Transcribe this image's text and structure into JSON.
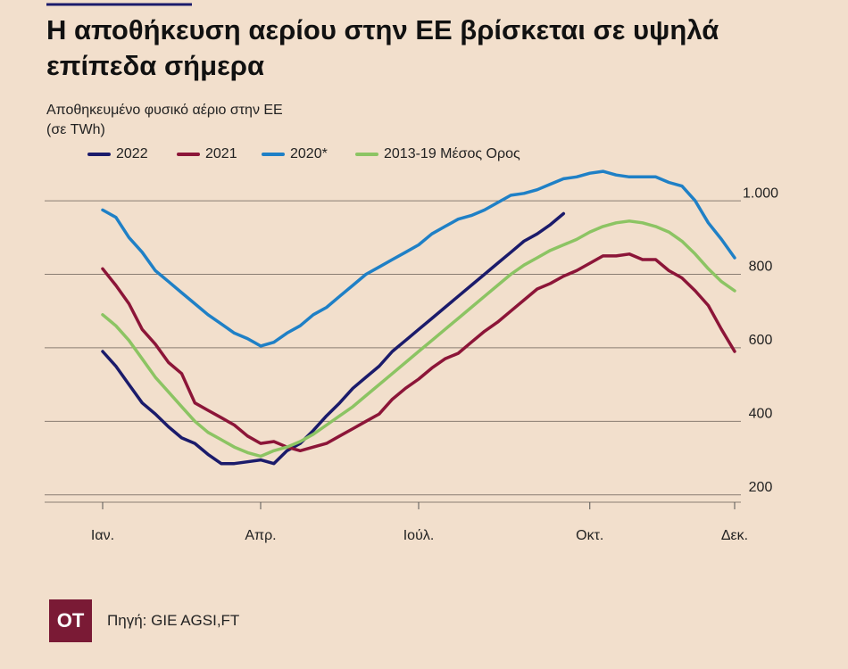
{
  "header": {
    "logo": "OT",
    "source": "Πηγή: GIE AGSI,FT"
  },
  "chart_data": {
    "type": "line",
    "title": "Η αποθήκευση αερίου στην ΕΕ βρίσκεται σε υψηλά επίπεδα σήμερα",
    "subtitle": "Αποθηκευμένο φυσικό αέριο στην ΕΕ",
    "ylabel": "(σε TWh)",
    "categories": [
      "Ιαν.",
      null,
      null,
      null,
      null,
      null,
      null,
      null,
      null,
      null,
      null,
      null,
      "Απρ.",
      null,
      null,
      null,
      null,
      null,
      null,
      null,
      null,
      null,
      null,
      null,
      "Ιούλ.",
      null,
      null,
      null,
      null,
      null,
      null,
      null,
      null,
      null,
      null,
      null,
      null,
      "Οκτ.",
      null,
      null,
      null,
      null,
      null,
      null,
      null,
      null,
      null,
      null,
      "Δεκ."
    ],
    "ylim": [
      180,
      1090
    ],
    "yticks": [
      200,
      400,
      600,
      800,
      {
        "value": 1000,
        "label": "1.000"
      }
    ],
    "grid": true,
    "series": [
      {
        "name": "2022",
        "color": "#1b1b6b",
        "values": [
          590,
          550,
          500,
          450,
          420,
          385,
          355,
          340,
          310,
          285,
          285,
          290,
          295,
          285,
          320,
          340,
          375,
          415,
          450,
          490,
          520,
          550,
          590,
          620,
          650,
          680,
          710,
          740,
          770,
          800,
          830,
          860,
          890,
          910,
          935,
          965,
          null,
          null,
          null,
          null,
          null,
          null,
          null,
          null,
          null,
          null,
          null,
          null,
          null
        ]
      },
      {
        "name": "2021",
        "color": "#8c1538",
        "values": [
          815,
          770,
          720,
          650,
          610,
          560,
          530,
          450,
          430,
          410,
          390,
          360,
          340,
          345,
          330,
          320,
          330,
          340,
          360,
          380,
          400,
          420,
          460,
          490,
          515,
          545,
          570,
          585,
          615,
          645,
          670,
          700,
          730,
          760,
          775,
          795,
          810,
          830,
          850,
          850,
          855,
          840,
          840,
          810,
          790,
          755,
          715,
          650,
          590
        ]
      },
      {
        "name": "2020*",
        "color": "#1f80c6",
        "values": [
          975,
          955,
          900,
          860,
          810,
          780,
          750,
          720,
          690,
          665,
          640,
          625,
          605,
          615,
          640,
          660,
          690,
          710,
          740,
          770,
          800,
          820,
          840,
          860,
          880,
          910,
          930,
          950,
          960,
          975,
          995,
          1015,
          1020,
          1030,
          1045,
          1060,
          1065,
          1075,
          1080,
          1070,
          1065,
          1065,
          1065,
          1050,
          1040,
          1000,
          940,
          895,
          845
        ]
      },
      {
        "name": "2013-19 Μέσος Ορος",
        "color": "#8cc463",
        "values": [
          690,
          660,
          620,
          570,
          520,
          480,
          440,
          400,
          370,
          350,
          330,
          315,
          305,
          320,
          330,
          345,
          365,
          390,
          415,
          440,
          470,
          500,
          530,
          560,
          590,
          620,
          650,
          680,
          710,
          740,
          770,
          800,
          825,
          845,
          865,
          880,
          895,
          915,
          930,
          940,
          945,
          940,
          930,
          915,
          890,
          855,
          815,
          780,
          755
        ]
      }
    ]
  }
}
